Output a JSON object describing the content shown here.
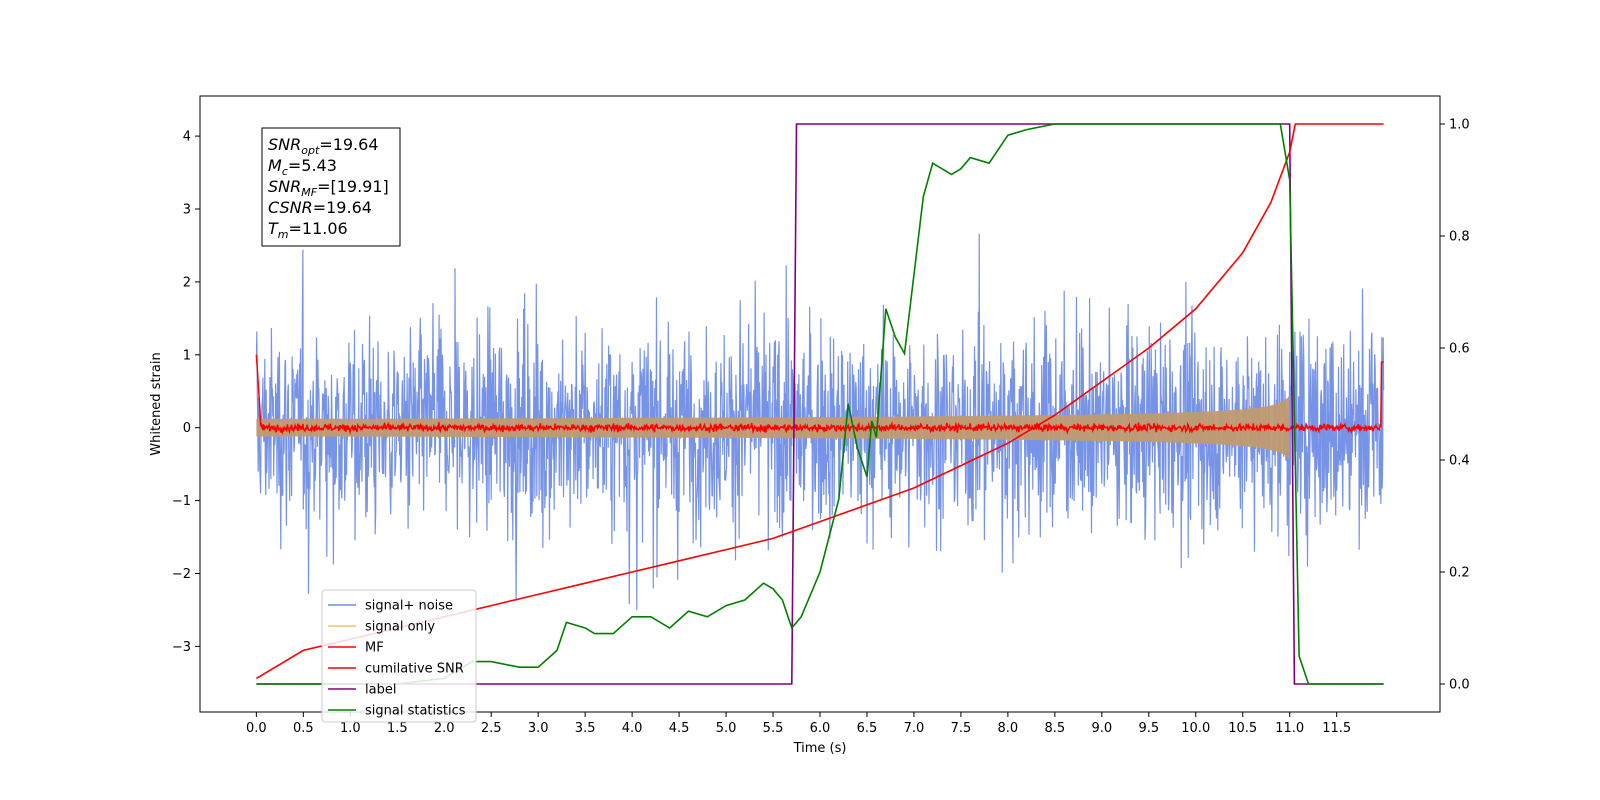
{
  "chart_data": {
    "type": "line",
    "xlabel": "Time (s)",
    "ylabel": "Whitened strain",
    "xlim": [
      -0.6,
      12.6
    ],
    "ylim_left": [
      -3.9,
      4.55
    ],
    "ylim_right": [
      -0.05,
      1.05
    ],
    "x_ticks": [
      "0.0",
      "0.5",
      "1.0",
      "1.5",
      "2.0",
      "2.5",
      "3.0",
      "3.5",
      "4.0",
      "4.5",
      "5.0",
      "5.5",
      "6.0",
      "6.5",
      "7.0",
      "7.5",
      "8.0",
      "8.5",
      "9.0",
      "9.5",
      "10.0",
      "10.5",
      "11.0",
      "11.5"
    ],
    "y_ticks_left": [
      "−3",
      "−2",
      "−1",
      "0",
      "1",
      "2",
      "3",
      "4"
    ],
    "y_ticks_right": [
      "0.0",
      "0.2",
      "0.4",
      "0.6",
      "0.8",
      "1.0"
    ],
    "annotation": [
      {
        "sym": "SNR",
        "sub": "opt",
        "value": "=19.64"
      },
      {
        "sym": "M",
        "sub": "c",
        "value": "=5.43"
      },
      {
        "sym": "SNR",
        "sub": "MF",
        "value": "=[19.91]"
      },
      {
        "sym": "CSNR",
        "sub": "",
        "value": "=19.64"
      },
      {
        "sym": "T",
        "sub": "m",
        "value": "=11.06"
      }
    ],
    "legend": [
      "signal+ noise",
      "signal only",
      "MF",
      "cumilative SNR",
      "label",
      "signal statistics"
    ],
    "legend_placement": "lower-left",
    "colors": {
      "noise": "#6f8de6",
      "signal": "#f5c06b",
      "signal_fill": "#c09a70",
      "mf": "#ff0000",
      "csnr": "#ff0000",
      "label": "#800080",
      "stats": "#008000"
    },
    "series": [
      {
        "name": "label",
        "axis": "right",
        "x": [
          0.0,
          5.7,
          5.75,
          11.0,
          11.05,
          12.0
        ],
        "y": [
          0.0,
          0.0,
          1.0,
          1.0,
          0.0,
          0.0
        ]
      },
      {
        "name": "cumilative SNR",
        "axis": "right",
        "x": [
          0.0,
          0.5,
          1.0,
          1.5,
          2.0,
          2.5,
          3.0,
          3.5,
          4.0,
          4.5,
          5.0,
          5.5,
          6.0,
          6.5,
          7.0,
          7.5,
          8.0,
          8.5,
          9.0,
          9.5,
          10.0,
          10.5,
          10.8,
          11.0,
          11.06,
          12.0
        ],
        "y": [
          0.01,
          0.06,
          0.08,
          0.1,
          0.12,
          0.14,
          0.16,
          0.18,
          0.2,
          0.22,
          0.24,
          0.26,
          0.29,
          0.32,
          0.35,
          0.39,
          0.43,
          0.48,
          0.54,
          0.6,
          0.67,
          0.77,
          0.86,
          0.95,
          1.0,
          1.0
        ]
      },
      {
        "name": "signal statistics",
        "axis": "right",
        "x": [
          0.0,
          0.5,
          1.0,
          1.5,
          2.0,
          2.3,
          2.5,
          2.8,
          3.0,
          3.2,
          3.3,
          3.5,
          3.6,
          3.8,
          4.0,
          4.2,
          4.4,
          4.6,
          4.8,
          5.0,
          5.2,
          5.4,
          5.5,
          5.6,
          5.7,
          5.8,
          6.0,
          6.2,
          6.3,
          6.4,
          6.5,
          6.55,
          6.6,
          6.7,
          6.8,
          6.9,
          7.0,
          7.1,
          7.2,
          7.4,
          7.5,
          7.6,
          7.8,
          8.0,
          8.2,
          8.5,
          9.0,
          9.5,
          10.0,
          10.5,
          10.9,
          11.0,
          11.1,
          11.2,
          11.5,
          12.0
        ],
        "y": [
          0.0,
          0.0,
          0.0,
          0.0,
          0.01,
          0.04,
          0.04,
          0.03,
          0.03,
          0.06,
          0.11,
          0.1,
          0.09,
          0.09,
          0.12,
          0.12,
          0.1,
          0.13,
          0.12,
          0.14,
          0.15,
          0.18,
          0.17,
          0.15,
          0.1,
          0.12,
          0.2,
          0.33,
          0.5,
          0.42,
          0.37,
          0.47,
          0.44,
          0.67,
          0.62,
          0.59,
          0.73,
          0.87,
          0.93,
          0.91,
          0.92,
          0.94,
          0.93,
          0.98,
          0.99,
          1.0,
          1.0,
          1.0,
          1.0,
          1.0,
          1.0,
          0.9,
          0.05,
          0.0,
          0.0,
          0.0
        ]
      }
    ]
  }
}
